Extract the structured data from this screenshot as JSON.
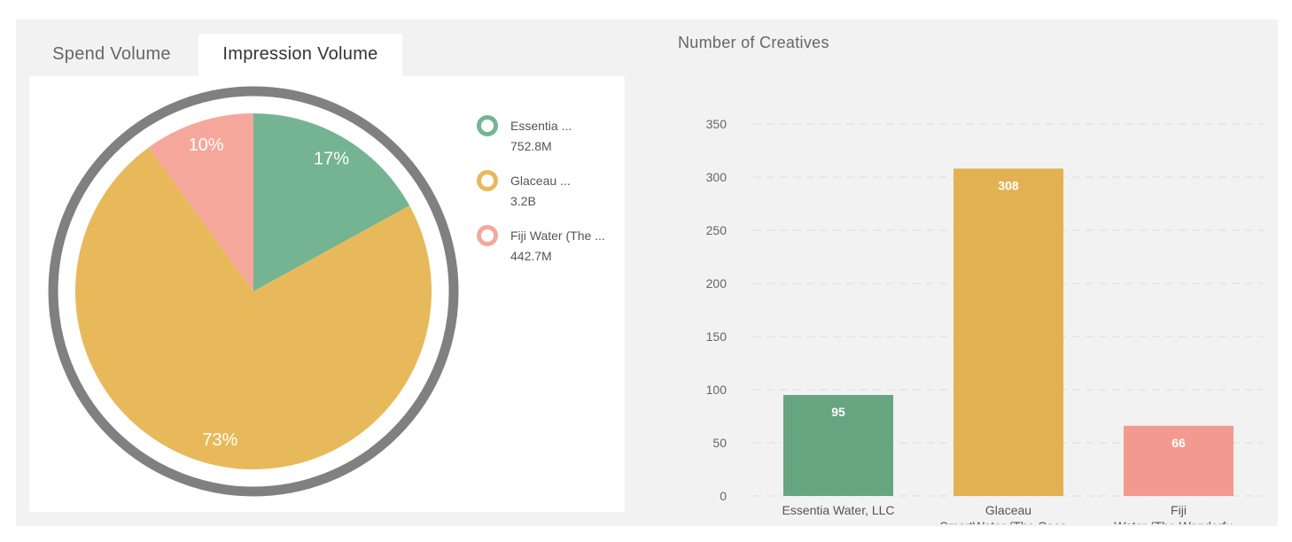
{
  "tabs": [
    {
      "label": "Spend Volume",
      "active": false
    },
    {
      "label": "Impression Volume",
      "active": true
    }
  ],
  "pie": {
    "type": "pie",
    "colors": [
      "#74b492",
      "#e8b95a",
      "#f6a79c"
    ],
    "ring_color": "#808080",
    "slices": [
      {
        "name": "Essentia ...",
        "value": "752.8M",
        "percent": 17,
        "label": "17%"
      },
      {
        "name": "Glaceau ...",
        "value": "3.2B",
        "percent": 73,
        "label": "73%"
      },
      {
        "name": "Fiji Water (The ...",
        "value": "442.7M",
        "percent": 10,
        "label": "10%"
      }
    ]
  },
  "bar": {
    "title": "Number of Creatives",
    "chart_data": {
      "type": "bar",
      "categories": [
        "Essentia Water, LLC",
        "Glaceau SmartWater (The Coca...",
        "Fiji Water (The Wonderfu..."
      ],
      "category_lines": [
        [
          "Essentia Water, LLC"
        ],
        [
          "Glaceau",
          "SmartWater (The Coca..."
        ],
        [
          "Fiji",
          "Water (The Wonderfu..."
        ]
      ],
      "values": [
        95,
        308,
        66
      ],
      "colors": [
        "#67a580",
        "#e2b252",
        "#f39a90"
      ],
      "ylim": [
        0,
        350
      ],
      "yticks": [
        0,
        50,
        100,
        150,
        200,
        250,
        300,
        350
      ],
      "xlabel": "",
      "ylabel": "",
      "grid": true
    }
  }
}
